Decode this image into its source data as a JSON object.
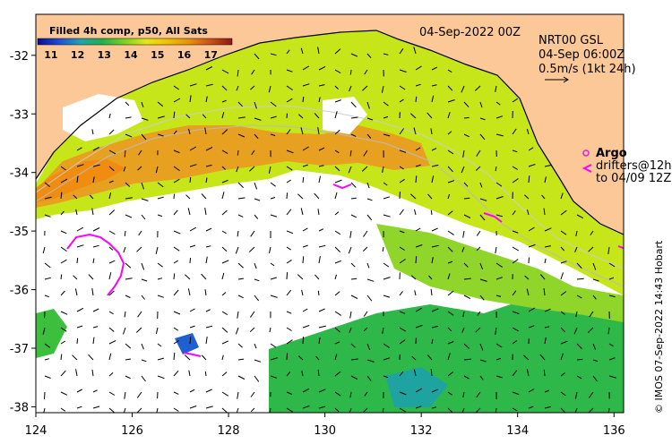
{
  "map": {
    "title_date": "04-Sep-2022 00Z",
    "product": {
      "line1": "NRT00 GSL",
      "line2": "04-Sep 06:00Z",
      "line3": "0.5m/s (1kt 24h)"
    },
    "colorbar": {
      "title": "Filled 4h comp, p50, All Sats",
      "ticks": [
        "11",
        "12",
        "13",
        "14",
        "15",
        "16",
        "17"
      ],
      "min": 10.5,
      "max": 17.8,
      "colors": [
        "#0b0b8f",
        "#1d4fd8",
        "#1fa3b0",
        "#20b04a",
        "#7fd321",
        "#e6e619",
        "#f0c000",
        "#e88f10",
        "#c9501a",
        "#8b1a12"
      ]
    },
    "legend": {
      "argo": "Argo",
      "drifters": "drifters@12h",
      "drifters_to": "to 04/09 12Z",
      "argo_color": "#e020e0"
    },
    "credit": "© IMOS 07-Sep-2022 14:43 Hobart",
    "axes": {
      "x_ticks": [
        "124",
        "126",
        "128",
        "130",
        "132",
        "134",
        "136"
      ],
      "y_ticks": [
        "-32",
        "-33",
        "-34",
        "-35",
        "-36",
        "-37",
        "-38"
      ],
      "lon_range": [
        124,
        136.2
      ],
      "lat_range": [
        -38.1,
        -31.3
      ]
    },
    "colors": {
      "land": "#fcc898",
      "no_data": "#ffffff",
      "drifter": "#ff00ff"
    }
  }
}
